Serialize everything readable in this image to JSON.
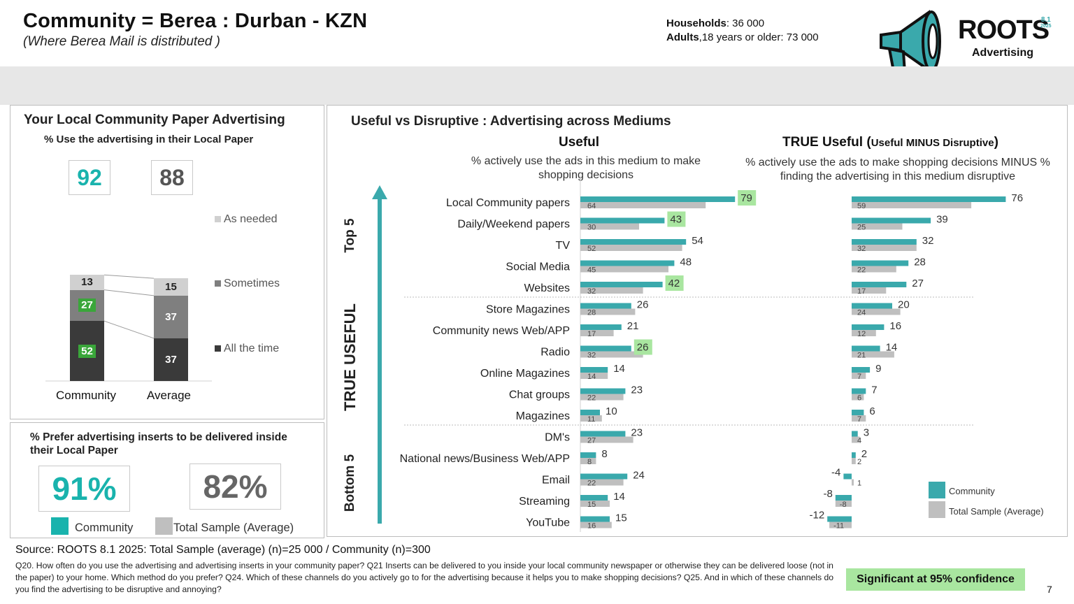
{
  "header": {
    "title": "Community = Berea : Durban - KZN",
    "subtitle": "(Where Berea Mail is distributed )",
    "households_label": "Households",
    "households_value": ": 36 000",
    "adults_label": "Adults",
    "adults_value": ",18 years or older: 73 000",
    "logo_text": "ROOTS",
    "logo_version": "8.1",
    "logo_year": "2025",
    "logo_sub": "Advertising"
  },
  "local_paper": {
    "title": "Your Local Community Paper Advertising",
    "subtitle": "% Use the advertising in their Local Paper",
    "community_total": "92",
    "average_total": "88",
    "legend": [
      "As needed",
      "Sometimes",
      "All the time"
    ]
  },
  "prefer": {
    "title": "% Prefer advertising inserts to be delivered inside their Local Paper",
    "community_value": "91%",
    "average_value": "82%",
    "legend_community": "Community",
    "legend_average": "Total Sample (Average)"
  },
  "mediums": {
    "title": "Useful vs Disruptive : Advertising across Mediums",
    "useful_heading": "Useful",
    "useful_desc": "% actively use the ads in this medium to make shopping decisions",
    "true_heading_main": "TRUE Useful (",
    "true_heading_small": "Useful MINUS Disruptive",
    "true_heading_close": ")",
    "true_desc": "% actively use the ads to make shopping decisions MINUS % finding the advertising in this medium disruptive",
    "side_top": "Top 5",
    "side_middle": "TRUE USEFUL",
    "side_bottom": "Bottom 5",
    "legend_community": "Community",
    "legend_average": "Total Sample (Average)"
  },
  "footer": {
    "source": "Source: ROOTS 8.1 2025:  Total Sample (average) (n)=25 000 / Community (n)=300",
    "notes": "Q20. How often do you use the advertising and advertising inserts in your community paper? Q21 Inserts can be delivered to you inside your local community newspaper or otherwise they can be delivered loose (not in the paper) to your home.  Which method do you prefer? Q24. Which of these channels do you actively go to for the advertising because it helps you to make shopping decisions? Q25. And in which of these channels do you find the advertising to be disruptive and annoying?",
    "significance": "Significant at 95% confidence",
    "page": "7"
  },
  "colors": {
    "teal": "#3aa9ac",
    "grey": "#bfbfbf",
    "dark": "#3a3a3a",
    "mid": "#7f7f7f",
    "light": "#d0d0d0",
    "sig_green": "#a9e6a0",
    "green_label": "#3aa63a",
    "teal_text": "#19b3ad"
  },
  "chart_data": [
    {
      "type": "bar",
      "stacked": true,
      "title": "% Use the advertising in their Local Paper",
      "categories": [
        "Community",
        "Average"
      ],
      "series": [
        {
          "name": "All the time",
          "values": [
            52,
            37
          ],
          "significant": [
            true,
            false
          ]
        },
        {
          "name": "Sometimes",
          "values": [
            27,
            37
          ],
          "significant": [
            true,
            false
          ]
        },
        {
          "name": "As needed",
          "values": [
            13,
            15
          ],
          "significant": [
            false,
            false
          ]
        }
      ],
      "totals": [
        92,
        88
      ]
    },
    {
      "type": "bar",
      "orientation": "horizontal",
      "title": "Useful",
      "categories": [
        "Local Community papers",
        "Daily/Weekend papers",
        "TV",
        "Social Media",
        "Websites",
        "Store Magazines",
        "Community news Web/APP",
        "Radio",
        "Online Magazines",
        "Chat groups",
        "Magazines",
        "DM's",
        "National news/Business Web/APP",
        "Email",
        "Streaming",
        "YouTube"
      ],
      "series": [
        {
          "name": "Community",
          "values": [
            79,
            43,
            54,
            48,
            42,
            26,
            21,
            26,
            14,
            23,
            10,
            23,
            8,
            24,
            14,
            15
          ]
        },
        {
          "name": "Total Sample (Average)",
          "values": [
            64,
            30,
            52,
            45,
            32,
            28,
            17,
            32,
            14,
            22,
            11,
            27,
            8,
            22,
            15,
            16
          ]
        }
      ],
      "significant": [
        true,
        true,
        false,
        false,
        true,
        false,
        false,
        true,
        false,
        false,
        false,
        false,
        false,
        false,
        false,
        false
      ],
      "groups": [
        "Top 5",
        "TRUE USEFUL",
        "Bottom 5"
      ]
    },
    {
      "type": "bar",
      "orientation": "horizontal",
      "title": "TRUE Useful (Useful MINUS Disruptive)",
      "categories": [
        "Local Community papers",
        "Daily/Weekend papers",
        "TV",
        "Social Media",
        "Websites",
        "Store Magazines",
        "Community news Web/APP",
        "Radio",
        "Online Magazines",
        "Chat groups",
        "Magazines",
        "DM's",
        "National news/Business Web/APP",
        "Email",
        "Streaming",
        "YouTube"
      ],
      "series": [
        {
          "name": "Community",
          "values": [
            76,
            39,
            32,
            28,
            27,
            20,
            16,
            14,
            9,
            7,
            6,
            3,
            2,
            -4,
            -8,
            -12
          ]
        },
        {
          "name": "Total Sample (Average)",
          "values": [
            59,
            25,
            32,
            22,
            17,
            24,
            12,
            21,
            7,
            6,
            7,
            4,
            2,
            1,
            -8,
            -11
          ]
        }
      ]
    }
  ]
}
